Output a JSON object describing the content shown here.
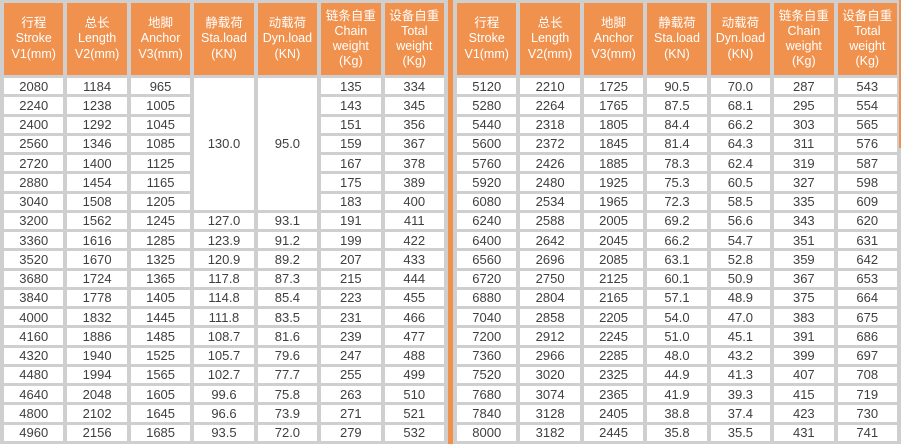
{
  "colors": {
    "header_bg": "#F0914D",
    "grid": "#CFCFCF",
    "cell_bg": "#FFFFFF",
    "header_text": "#FFFFFF",
    "text": "#3F3F3F",
    "divider": "#F0914D"
  },
  "columns": [
    {
      "key": "stroke",
      "lines": [
        "行程",
        "Stroke",
        "V1(mm)"
      ]
    },
    {
      "key": "length",
      "lines": [
        "总长",
        "Length",
        "V2(mm)"
      ]
    },
    {
      "key": "anchor",
      "lines": [
        "地脚",
        "Anchor",
        "V3(mm)"
      ]
    },
    {
      "key": "sta-load",
      "lines": [
        "静载荷",
        "Sta.load",
        "(KN)"
      ]
    },
    {
      "key": "dyn-load",
      "lines": [
        "动载荷",
        "Dyn.load",
        "(KN)"
      ]
    },
    {
      "key": "chain-weight",
      "lines": [
        "链条自重",
        "Chain",
        "weight",
        "(Kg)"
      ]
    },
    {
      "key": "total-weight",
      "lines": [
        "设备自重",
        "Total",
        "weight",
        "(Kg)"
      ]
    }
  ],
  "tables": [
    {
      "id": "left",
      "merges": [
        {
          "row": 0,
          "col": 3,
          "rowspan": 7
        },
        {
          "row": 0,
          "col": 4,
          "rowspan": 7
        }
      ],
      "rows": [
        [
          "2080",
          "1184",
          "965",
          "130.0",
          "95.0",
          "135",
          "334"
        ],
        [
          "2240",
          "1238",
          "1005",
          null,
          null,
          "143",
          "345"
        ],
        [
          "2400",
          "1292",
          "1045",
          null,
          null,
          "151",
          "356"
        ],
        [
          "2560",
          "1346",
          "1085",
          null,
          null,
          "159",
          "367"
        ],
        [
          "2720",
          "1400",
          "1125",
          null,
          null,
          "167",
          "378"
        ],
        [
          "2880",
          "1454",
          "1165",
          null,
          null,
          "175",
          "389"
        ],
        [
          "3040",
          "1508",
          "1205",
          null,
          null,
          "183",
          "400"
        ],
        [
          "3200",
          "1562",
          "1245",
          "127.0",
          "93.1",
          "191",
          "411"
        ],
        [
          "3360",
          "1616",
          "1285",
          "123.9",
          "91.2",
          "199",
          "422"
        ],
        [
          "3520",
          "1670",
          "1325",
          "120.9",
          "89.2",
          "207",
          "433"
        ],
        [
          "3680",
          "1724",
          "1365",
          "117.8",
          "87.3",
          "215",
          "444"
        ],
        [
          "3840",
          "1778",
          "1405",
          "114.8",
          "85.4",
          "223",
          "455"
        ],
        [
          "4000",
          "1832",
          "1445",
          "111.8",
          "83.5",
          "231",
          "466"
        ],
        [
          "4160",
          "1886",
          "1485",
          "108.7",
          "81.6",
          "239",
          "477"
        ],
        [
          "4320",
          "1940",
          "1525",
          "105.7",
          "79.6",
          "247",
          "488"
        ],
        [
          "4480",
          "1994",
          "1565",
          "102.7",
          "77.7",
          "255",
          "499"
        ],
        [
          "4640",
          "2048",
          "1605",
          "99.6",
          "75.8",
          "263",
          "510"
        ],
        [
          "4800",
          "2102",
          "1645",
          "96.6",
          "73.9",
          "271",
          "521"
        ],
        [
          "4960",
          "2156",
          "1685",
          "93.5",
          "72.0",
          "279",
          "532"
        ]
      ]
    },
    {
      "id": "right",
      "merges": [],
      "rows": [
        [
          "5120",
          "2210",
          "1725",
          "90.5",
          "70.0",
          "287",
          "543"
        ],
        [
          "5280",
          "2264",
          "1765",
          "87.5",
          "68.1",
          "295",
          "554"
        ],
        [
          "5440",
          "2318",
          "1805",
          "84.4",
          "66.2",
          "303",
          "565"
        ],
        [
          "5600",
          "2372",
          "1845",
          "81.4",
          "64.3",
          "311",
          "576"
        ],
        [
          "5760",
          "2426",
          "1885",
          "78.3",
          "62.4",
          "319",
          "587"
        ],
        [
          "5920",
          "2480",
          "1925",
          "75.3",
          "60.5",
          "327",
          "598"
        ],
        [
          "6080",
          "2534",
          "1965",
          "72.3",
          "58.5",
          "335",
          "609"
        ],
        [
          "6240",
          "2588",
          "2005",
          "69.2",
          "56.6",
          "343",
          "620"
        ],
        [
          "6400",
          "2642",
          "2045",
          "66.2",
          "54.7",
          "351",
          "631"
        ],
        [
          "6560",
          "2696",
          "2085",
          "63.1",
          "52.8",
          "359",
          "642"
        ],
        [
          "6720",
          "2750",
          "2125",
          "60.1",
          "50.9",
          "367",
          "653"
        ],
        [
          "6880",
          "2804",
          "2165",
          "57.1",
          "48.9",
          "375",
          "664"
        ],
        [
          "7040",
          "2858",
          "2205",
          "54.0",
          "47.0",
          "383",
          "675"
        ],
        [
          "7200",
          "2912",
          "2245",
          "51.0",
          "45.1",
          "391",
          "686"
        ],
        [
          "7360",
          "2966",
          "2285",
          "48.0",
          "43.2",
          "399",
          "697"
        ],
        [
          "7520",
          "3020",
          "2325",
          "44.9",
          "41.3",
          "407",
          "708"
        ],
        [
          "7680",
          "3074",
          "2365",
          "41.9",
          "39.3",
          "415",
          "719"
        ],
        [
          "7840",
          "3128",
          "2405",
          "38.8",
          "37.4",
          "423",
          "730"
        ],
        [
          "8000",
          "3182",
          "2445",
          "35.8",
          "35.5",
          "431",
          "741"
        ]
      ]
    }
  ]
}
